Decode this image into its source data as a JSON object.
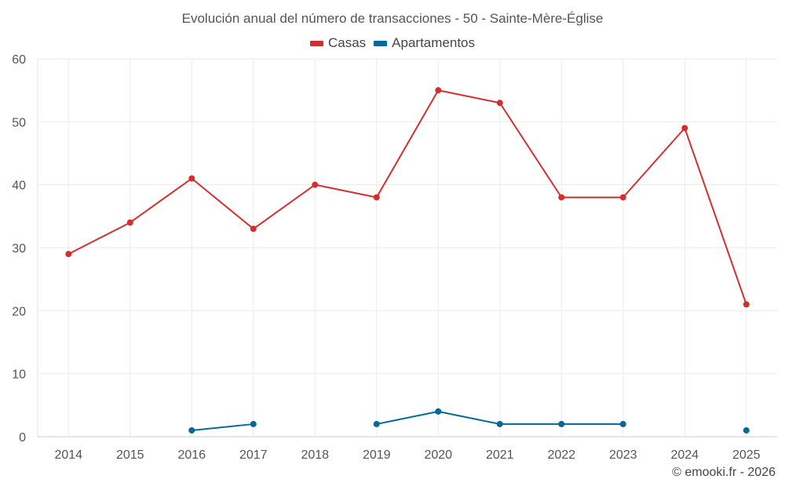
{
  "chart_data": {
    "type": "line",
    "title": "Evolución anual del número de transacciones - 50 - Sainte-Mère-Église",
    "categories": [
      "2014",
      "2015",
      "2016",
      "2017",
      "2018",
      "2019",
      "2020",
      "2021",
      "2022",
      "2023",
      "2024",
      "2025"
    ],
    "ylim": [
      0,
      60
    ],
    "yticks": [
      0,
      10,
      20,
      30,
      40,
      50,
      60
    ],
    "grid": true,
    "legend_position": "top-center",
    "series": [
      {
        "name": "Casas",
        "color": "#d32f2f",
        "values": [
          29,
          34,
          41,
          33,
          40,
          38,
          55,
          53,
          38,
          38,
          49,
          21
        ]
      },
      {
        "name": "Apartamentos",
        "color": "#01689b",
        "values": [
          null,
          null,
          1,
          2,
          null,
          2,
          4,
          2,
          2,
          2,
          null,
          1
        ]
      }
    ]
  },
  "copyright": "© emooki.fr - 2026"
}
